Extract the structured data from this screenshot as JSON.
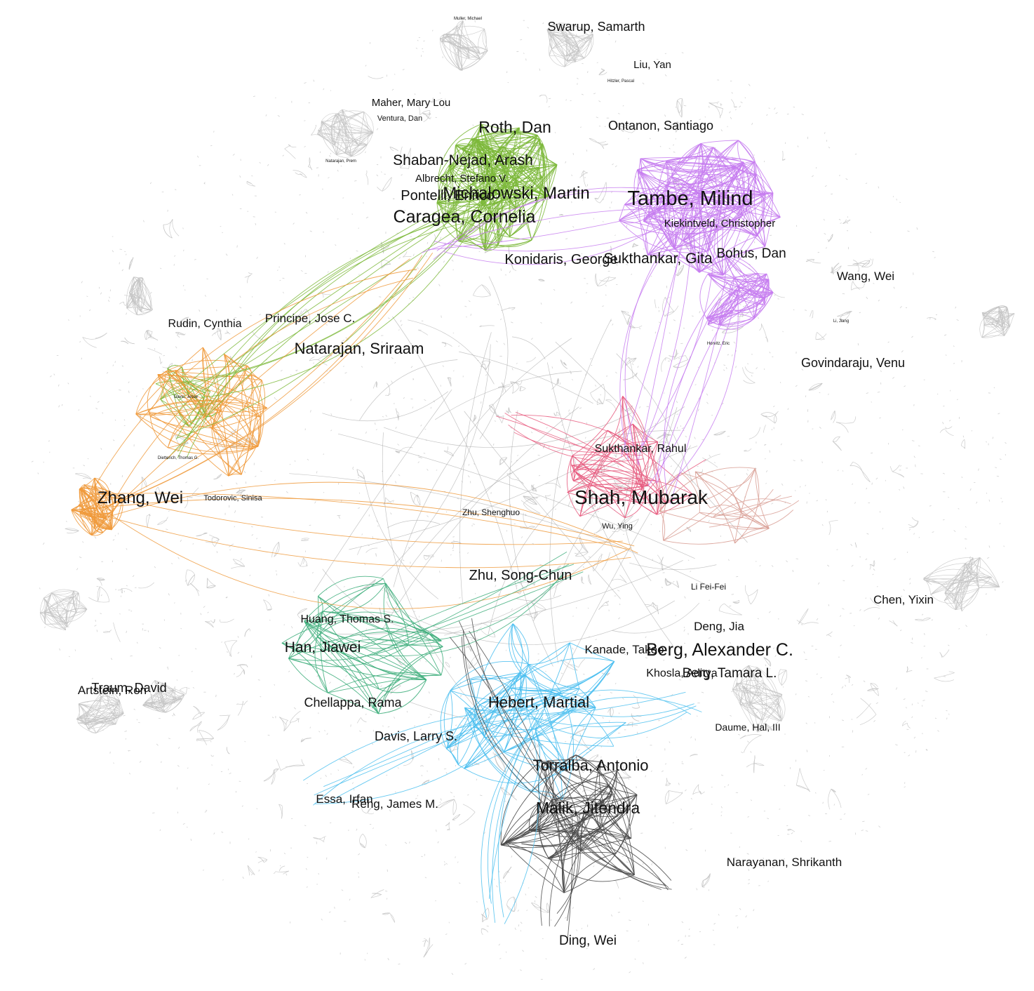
{
  "colors": {
    "background": "#ffffff",
    "gray_edges": "#c4c4c4",
    "gray_dots": "#bdbdbd",
    "green": "#7cb83a",
    "purple": "#c77df0",
    "orange": "#ef9a3c",
    "pink": "#e75c7f",
    "teal": "#3fae7c",
    "blue": "#4bbfef",
    "black": "#4a4a4a",
    "salmon": "#d9a096",
    "label_text": "#111111"
  },
  "communities": [
    {
      "id": "green",
      "color_key": "green"
    },
    {
      "id": "purple",
      "color_key": "purple"
    },
    {
      "id": "orange",
      "color_key": "orange"
    },
    {
      "id": "pink",
      "color_key": "pink"
    },
    {
      "id": "teal",
      "color_key": "teal"
    },
    {
      "id": "blue",
      "color_key": "blue"
    },
    {
      "id": "black",
      "color_key": "black"
    }
  ],
  "author_labels": [
    {
      "text": "Swarup, Samarth",
      "size": "medium"
    },
    {
      "text": "Liu, Yan",
      "size": "small"
    },
    {
      "text": "Maher, Mary Lou",
      "size": "small"
    },
    {
      "text": "Ventura, Dan",
      "size": "tiny"
    },
    {
      "text": "Roth, Dan",
      "size": "large"
    },
    {
      "text": "Ontanon, Santiago",
      "size": "medium"
    },
    {
      "text": "Shaban-Nejad, Arash",
      "size": "large"
    },
    {
      "text": "Albrecht, Stefano V.",
      "size": "medium"
    },
    {
      "text": "Michalowski, Martin",
      "size": "xlarge"
    },
    {
      "text": "Pontelli, Enrico",
      "size": "large"
    },
    {
      "text": "Tambe, Milind",
      "size": "xxlarge"
    },
    {
      "text": "Caragea, Cornelia",
      "size": "xlarge"
    },
    {
      "text": "Kiekintveld, Christopher",
      "size": "medium"
    },
    {
      "text": "Konidaris, George",
      "size": "large"
    },
    {
      "text": "Sukthankar, Gita",
      "size": "large"
    },
    {
      "text": "Bohus, Dan",
      "size": "large"
    },
    {
      "text": "Wang, Wei",
      "size": "medium"
    },
    {
      "text": "Rudin, Cynthia",
      "size": "medium"
    },
    {
      "text": "Principe, Jose C.",
      "size": "medium"
    },
    {
      "text": "Natarajan, Sriraam",
      "size": "large"
    },
    {
      "text": "Govindaraju, Venu",
      "size": "medium"
    },
    {
      "text": "Sukthankar, Rahul",
      "size": "medium"
    },
    {
      "text": "Zhang, Wei",
      "size": "xlarge"
    },
    {
      "text": "Todorovic, Sinisa",
      "size": "tiny"
    },
    {
      "text": "Shah, Mubarak",
      "size": "xlarge"
    },
    {
      "text": "Zhu, Shenghuo",
      "size": "small"
    },
    {
      "text": "Wu, Ying",
      "size": "tiny"
    },
    {
      "text": "Zhu, Song-Chun",
      "size": "large"
    },
    {
      "text": "Li Fei-Fei",
      "size": "small"
    },
    {
      "text": "Chen, Yixin",
      "size": "medium"
    },
    {
      "text": "Huang, Thomas S.",
      "size": "medium"
    },
    {
      "text": "Deng, Jia",
      "size": "medium"
    },
    {
      "text": "Han, Jiawei",
      "size": "large"
    },
    {
      "text": "Kanade, Takeo",
      "size": "medium"
    },
    {
      "text": "Berg, Alexander C.",
      "size": "xlarge"
    },
    {
      "text": "Khosla, Aditya",
      "size": "medium"
    },
    {
      "text": "Berg, Tamara L.",
      "size": "medium"
    },
    {
      "text": "Traum, David",
      "size": "medium"
    },
    {
      "text": "Artstein, Ron",
      "size": "medium"
    },
    {
      "text": "Chellappa, Rama",
      "size": "medium"
    },
    {
      "text": "Hebert, Martial",
      "size": "large"
    },
    {
      "text": "Daume, Hal, III",
      "size": "small"
    },
    {
      "text": "Davis, Larry S.",
      "size": "medium"
    },
    {
      "text": "Torralba, Antonio",
      "size": "large"
    },
    {
      "text": "Essa, Irfan",
      "size": "medium"
    },
    {
      "text": "Rehg, James M.",
      "size": "medium"
    },
    {
      "text": "Malik, Jitendra",
      "size": "large"
    },
    {
      "text": "Narayanan, Shrikanth",
      "size": "medium"
    },
    {
      "text": "Ding, Wei",
      "size": "medium"
    },
    {
      "text": "Muller, Michael",
      "size": "micro"
    },
    {
      "text": "Natarajan, Prem",
      "size": "micro"
    },
    {
      "text": "Hitzler, Pascal",
      "size": "micro"
    },
    {
      "text": "Dietterich, Thomas G.",
      "size": "micro"
    },
    {
      "text": "Horvitz, Eric",
      "size": "micro"
    },
    {
      "text": "Li, Jiang",
      "size": "micro"
    },
    {
      "text": "Davis, Jesse",
      "size": "micro"
    }
  ]
}
